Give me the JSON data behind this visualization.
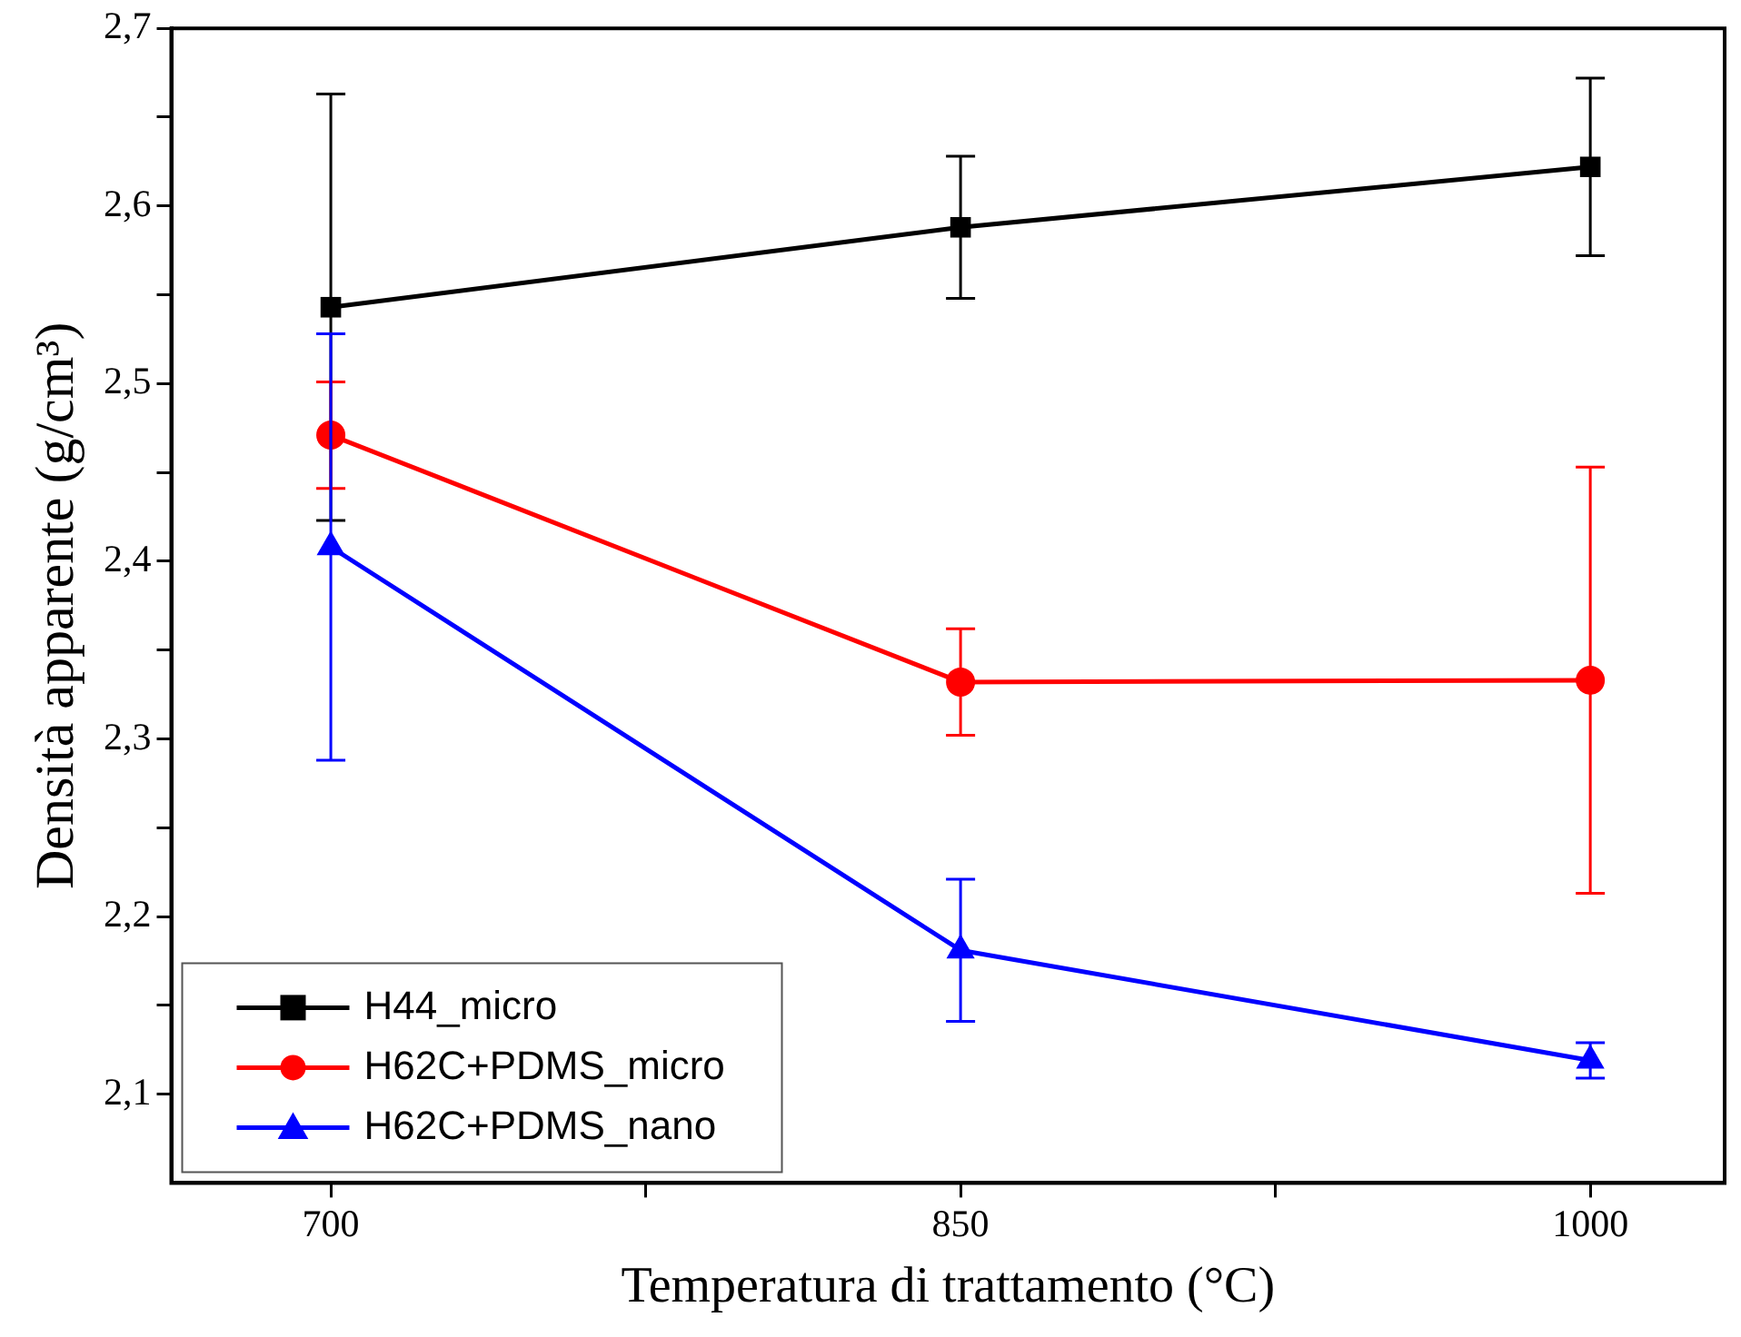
{
  "chart_data": {
    "type": "line",
    "xlabel": "Temperatura di trattamento (°C)",
    "ylabel": "Densità apparente (g/cm³)",
    "x": [
      700,
      850,
      1000
    ],
    "series": [
      {
        "name": "H44_micro",
        "color": "#000000",
        "marker": "square",
        "values": [
          2.543,
          2.588,
          2.622
        ],
        "errors": [
          0.12,
          0.04,
          0.05
        ]
      },
      {
        "name": "H62C+PDMS_micro",
        "color": "#ff0000",
        "marker": "circle",
        "values": [
          2.471,
          2.332,
          2.333
        ],
        "errors": [
          0.03,
          0.03,
          0.12
        ]
      },
      {
        "name": "H62C+PDMS_nano",
        "color": "#0000ff",
        "marker": "triangle",
        "values": [
          2.408,
          2.181,
          2.119
        ],
        "errors": [
          0.12,
          0.04,
          0.01
        ]
      }
    ],
    "xlim": [
      662,
      1032
    ],
    "ylim": [
      2.05,
      2.7
    ],
    "xticks": [
      700,
      {
        "value": 775,
        "label": null
      },
      850,
      {
        "value": 925,
        "label": null
      },
      1000
    ],
    "yticks": [
      {
        "value": 2.1,
        "label": "2,1"
      },
      {
        "value": 2.15,
        "label": null
      },
      {
        "value": 2.2,
        "label": "2,2"
      },
      {
        "value": 2.25,
        "label": null
      },
      {
        "value": 2.3,
        "label": "2,3"
      },
      {
        "value": 2.35,
        "label": null
      },
      {
        "value": 2.4,
        "label": "2,4"
      },
      {
        "value": 2.45,
        "label": null
      },
      {
        "value": 2.5,
        "label": "2,5"
      },
      {
        "value": 2.55,
        "label": null
      },
      {
        "value": 2.6,
        "label": "2,6"
      },
      {
        "value": 2.65,
        "label": null
      },
      {
        "value": 2.7,
        "label": "2,7"
      }
    ],
    "grid": false,
    "legend": "bottom left",
    "line_style": "solid"
  }
}
